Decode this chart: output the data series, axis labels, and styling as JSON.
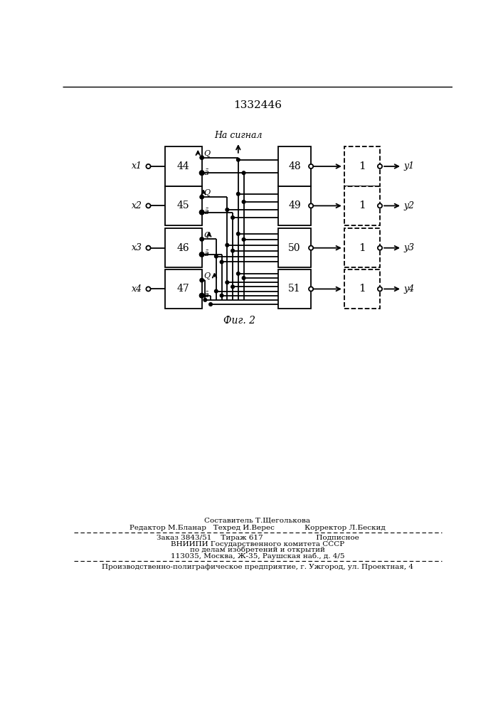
{
  "title": "1332446",
  "fig_caption": "Фиг. 2",
  "na_signal": "На сигнал",
  "background": "#ffffff",
  "line_color": "#000000",
  "box_labels_left": [
    "44",
    "45",
    "46",
    "47"
  ],
  "box_labels_mid": [
    "48",
    "49",
    "50",
    "51"
  ],
  "box_labels_right": [
    "1",
    "1",
    "1",
    "1"
  ],
  "x_inputs": [
    "x1",
    "x2",
    "x3",
    "x4"
  ],
  "y_outputs": [
    "y1",
    "y2",
    "y3",
    "y4"
  ],
  "footer_line0": "Составитель Т.Щеголькова",
  "footer_line1": "Редактор М.Бланар   Техред И.Верес             Корректор Л.Бескид",
  "footer_line2": "Заказ 3843/51    Тираж 617                       Подписное",
  "footer_line3": "ВНИИПИ Государственного комитета СССР",
  "footer_line4": "по делам изобретений и открытий",
  "footer_line5": "113035, Москва, Ж-35, Раушская наб., д. 4/5",
  "footer_line6": "Производственно-полиграфическое предприятие, г. Ужгород, ул. Проектная, 4"
}
